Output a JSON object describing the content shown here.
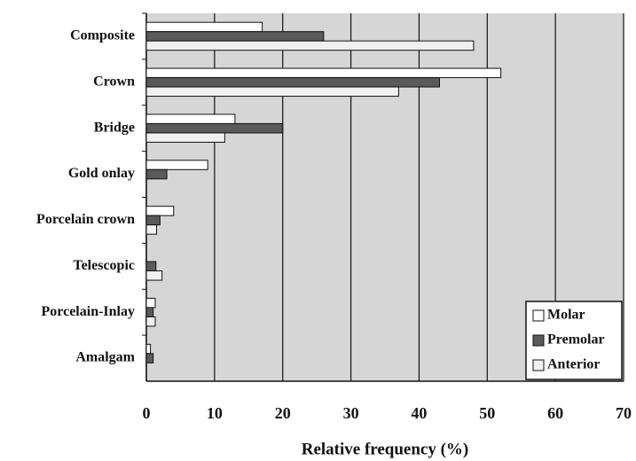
{
  "chart_data": {
    "type": "barh",
    "xlabel": "Relative frequency (%)",
    "categories": [
      "Composite",
      "Crown",
      "Bridge",
      "Gold onlay",
      "Porcelain crown",
      "Telescopic",
      "Porcelain-Inlay",
      "Amalgam"
    ],
    "series": [
      {
        "name": "Molar",
        "color": "#ffffff",
        "values": [
          17,
          52,
          13,
          9,
          4,
          0,
          1.3,
          0.6
        ]
      },
      {
        "name": "Premolar",
        "color": "#5a5a5a",
        "values": [
          26,
          43,
          20,
          3,
          2,
          1.4,
          1,
          1
        ]
      },
      {
        "name": "Anterior",
        "color": "#f0f0f0",
        "values": [
          48,
          37,
          11.5,
          0,
          1.5,
          2.3,
          1.3,
          0
        ]
      }
    ],
    "xlim": [
      0,
      70
    ],
    "xticks": [
      0,
      10,
      20,
      30,
      40,
      50,
      60,
      70
    ],
    "grid": true,
    "legend": "lower right"
  }
}
